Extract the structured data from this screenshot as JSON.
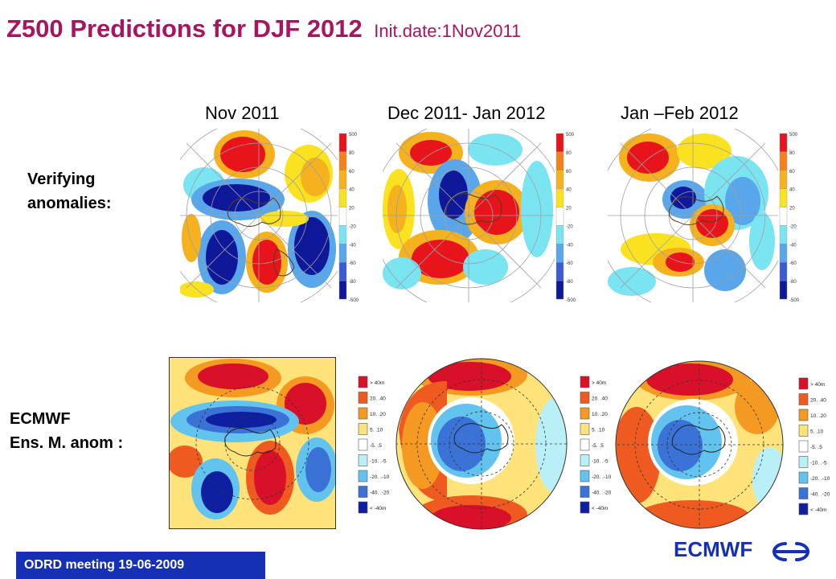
{
  "title": {
    "main": "Z500 Predictions for DJF 2012",
    "sub": "Init.date:1Nov2011"
  },
  "columns": [
    "Nov 2011",
    "Dec 2011- Jan 2012",
    "Jan –Feb 2012"
  ],
  "rows": {
    "verifying": {
      "line1": "Verifying",
      "line2": "anomalies:"
    },
    "ensemble": {
      "line1": "ECMWF",
      "line2": "Ens. M. anom :"
    }
  },
  "legend_top": {
    "labels": [
      "500",
      "80",
      "60",
      "40",
      "20",
      "-20",
      "-40",
      "-60",
      "-80",
      "-500"
    ],
    "colors": [
      "#e8141c",
      "#f4801e",
      "#f6b11e",
      "#fbe221",
      "#ffffff",
      "#7be4f1",
      "#5aa6ea",
      "#3a5bd4",
      "#10189a"
    ]
  },
  "legend_bottom": {
    "labels": [
      "> 40m",
      "20. .40",
      "10. .20",
      "5. .10",
      "-5. .5",
      "-10. .-5",
      "-20. .-10",
      "-40. .-20",
      "< -40m"
    ],
    "colors": [
      "#d8102a",
      "#ee5a20",
      "#f49a22",
      "#fde37a",
      "#ffffff",
      "#b9f0f7",
      "#62c4ee",
      "#3a72d6",
      "#0e1fa0"
    ]
  },
  "footer": {
    "text": "ODRD meeting    19-06-2009",
    "brand": "ECMWF"
  },
  "colors": {
    "title": "#a8155f",
    "footer_bar": "#1530b5",
    "brand": "#1530b5"
  }
}
